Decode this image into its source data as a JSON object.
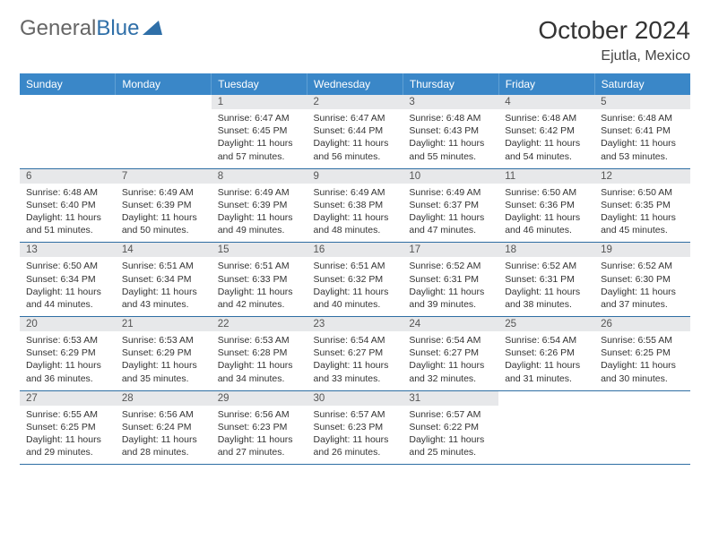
{
  "logo": {
    "gray": "General",
    "blue": "Blue"
  },
  "title": "October 2024",
  "location": "Ejutla, Mexico",
  "colors": {
    "header_bg": "#3a87c8",
    "header_text": "#ffffff",
    "daynum_bg": "#e7e8ea",
    "border": "#2e6ea3",
    "logo_gray": "#666666",
    "logo_blue": "#2f6fa8"
  },
  "day_headers": [
    "Sunday",
    "Monday",
    "Tuesday",
    "Wednesday",
    "Thursday",
    "Friday",
    "Saturday"
  ],
  "weeks": [
    {
      "days": [
        null,
        null,
        {
          "num": "1",
          "sunrise": "Sunrise: 6:47 AM",
          "sunset": "Sunset: 6:45 PM",
          "daylight": "Daylight: 11 hours and 57 minutes."
        },
        {
          "num": "2",
          "sunrise": "Sunrise: 6:47 AM",
          "sunset": "Sunset: 6:44 PM",
          "daylight": "Daylight: 11 hours and 56 minutes."
        },
        {
          "num": "3",
          "sunrise": "Sunrise: 6:48 AM",
          "sunset": "Sunset: 6:43 PM",
          "daylight": "Daylight: 11 hours and 55 minutes."
        },
        {
          "num": "4",
          "sunrise": "Sunrise: 6:48 AM",
          "sunset": "Sunset: 6:42 PM",
          "daylight": "Daylight: 11 hours and 54 minutes."
        },
        {
          "num": "5",
          "sunrise": "Sunrise: 6:48 AM",
          "sunset": "Sunset: 6:41 PM",
          "daylight": "Daylight: 11 hours and 53 minutes."
        }
      ]
    },
    {
      "days": [
        {
          "num": "6",
          "sunrise": "Sunrise: 6:48 AM",
          "sunset": "Sunset: 6:40 PM",
          "daylight": "Daylight: 11 hours and 51 minutes."
        },
        {
          "num": "7",
          "sunrise": "Sunrise: 6:49 AM",
          "sunset": "Sunset: 6:39 PM",
          "daylight": "Daylight: 11 hours and 50 minutes."
        },
        {
          "num": "8",
          "sunrise": "Sunrise: 6:49 AM",
          "sunset": "Sunset: 6:39 PM",
          "daylight": "Daylight: 11 hours and 49 minutes."
        },
        {
          "num": "9",
          "sunrise": "Sunrise: 6:49 AM",
          "sunset": "Sunset: 6:38 PM",
          "daylight": "Daylight: 11 hours and 48 minutes."
        },
        {
          "num": "10",
          "sunrise": "Sunrise: 6:49 AM",
          "sunset": "Sunset: 6:37 PM",
          "daylight": "Daylight: 11 hours and 47 minutes."
        },
        {
          "num": "11",
          "sunrise": "Sunrise: 6:50 AM",
          "sunset": "Sunset: 6:36 PM",
          "daylight": "Daylight: 11 hours and 46 minutes."
        },
        {
          "num": "12",
          "sunrise": "Sunrise: 6:50 AM",
          "sunset": "Sunset: 6:35 PM",
          "daylight": "Daylight: 11 hours and 45 minutes."
        }
      ]
    },
    {
      "days": [
        {
          "num": "13",
          "sunrise": "Sunrise: 6:50 AM",
          "sunset": "Sunset: 6:34 PM",
          "daylight": "Daylight: 11 hours and 44 minutes."
        },
        {
          "num": "14",
          "sunrise": "Sunrise: 6:51 AM",
          "sunset": "Sunset: 6:34 PM",
          "daylight": "Daylight: 11 hours and 43 minutes."
        },
        {
          "num": "15",
          "sunrise": "Sunrise: 6:51 AM",
          "sunset": "Sunset: 6:33 PM",
          "daylight": "Daylight: 11 hours and 42 minutes."
        },
        {
          "num": "16",
          "sunrise": "Sunrise: 6:51 AM",
          "sunset": "Sunset: 6:32 PM",
          "daylight": "Daylight: 11 hours and 40 minutes."
        },
        {
          "num": "17",
          "sunrise": "Sunrise: 6:52 AM",
          "sunset": "Sunset: 6:31 PM",
          "daylight": "Daylight: 11 hours and 39 minutes."
        },
        {
          "num": "18",
          "sunrise": "Sunrise: 6:52 AM",
          "sunset": "Sunset: 6:31 PM",
          "daylight": "Daylight: 11 hours and 38 minutes."
        },
        {
          "num": "19",
          "sunrise": "Sunrise: 6:52 AM",
          "sunset": "Sunset: 6:30 PM",
          "daylight": "Daylight: 11 hours and 37 minutes."
        }
      ]
    },
    {
      "days": [
        {
          "num": "20",
          "sunrise": "Sunrise: 6:53 AM",
          "sunset": "Sunset: 6:29 PM",
          "daylight": "Daylight: 11 hours and 36 minutes."
        },
        {
          "num": "21",
          "sunrise": "Sunrise: 6:53 AM",
          "sunset": "Sunset: 6:29 PM",
          "daylight": "Daylight: 11 hours and 35 minutes."
        },
        {
          "num": "22",
          "sunrise": "Sunrise: 6:53 AM",
          "sunset": "Sunset: 6:28 PM",
          "daylight": "Daylight: 11 hours and 34 minutes."
        },
        {
          "num": "23",
          "sunrise": "Sunrise: 6:54 AM",
          "sunset": "Sunset: 6:27 PM",
          "daylight": "Daylight: 11 hours and 33 minutes."
        },
        {
          "num": "24",
          "sunrise": "Sunrise: 6:54 AM",
          "sunset": "Sunset: 6:27 PM",
          "daylight": "Daylight: 11 hours and 32 minutes."
        },
        {
          "num": "25",
          "sunrise": "Sunrise: 6:54 AM",
          "sunset": "Sunset: 6:26 PM",
          "daylight": "Daylight: 11 hours and 31 minutes."
        },
        {
          "num": "26",
          "sunrise": "Sunrise: 6:55 AM",
          "sunset": "Sunset: 6:25 PM",
          "daylight": "Daylight: 11 hours and 30 minutes."
        }
      ]
    },
    {
      "days": [
        {
          "num": "27",
          "sunrise": "Sunrise: 6:55 AM",
          "sunset": "Sunset: 6:25 PM",
          "daylight": "Daylight: 11 hours and 29 minutes."
        },
        {
          "num": "28",
          "sunrise": "Sunrise: 6:56 AM",
          "sunset": "Sunset: 6:24 PM",
          "daylight": "Daylight: 11 hours and 28 minutes."
        },
        {
          "num": "29",
          "sunrise": "Sunrise: 6:56 AM",
          "sunset": "Sunset: 6:23 PM",
          "daylight": "Daylight: 11 hours and 27 minutes."
        },
        {
          "num": "30",
          "sunrise": "Sunrise: 6:57 AM",
          "sunset": "Sunset: 6:23 PM",
          "daylight": "Daylight: 11 hours and 26 minutes."
        },
        {
          "num": "31",
          "sunrise": "Sunrise: 6:57 AM",
          "sunset": "Sunset: 6:22 PM",
          "daylight": "Daylight: 11 hours and 25 minutes."
        },
        null,
        null
      ]
    }
  ]
}
